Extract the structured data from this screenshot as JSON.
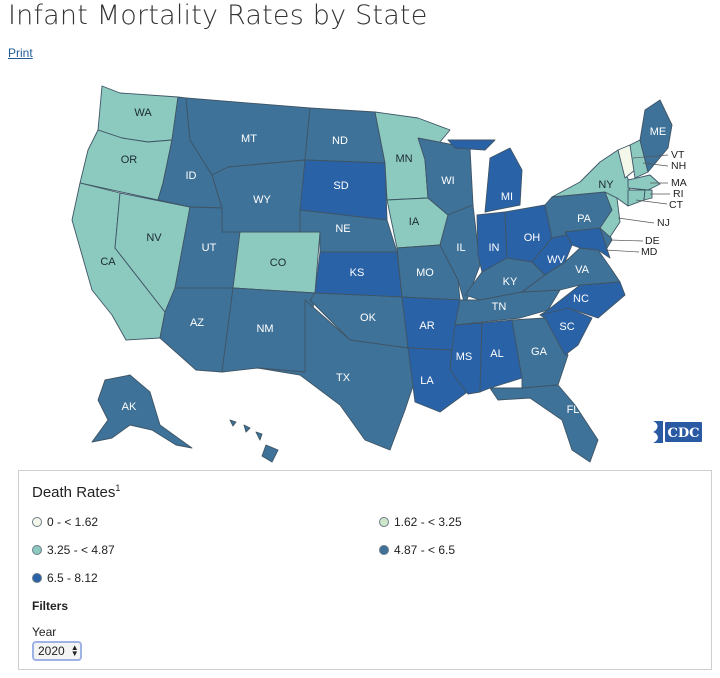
{
  "page": {
    "title": "Infant Mortality Rates by State",
    "print_label": "Print"
  },
  "colors": {
    "bin1": "#f3f8ea",
    "bin2": "#cfe7c9",
    "bin3": "#8cc9bf",
    "bin4": "#3e7299",
    "bin5": "#2a62a8",
    "label_dark": "#1c2b33",
    "label_light": "#ffffff"
  },
  "map": {
    "states": [
      {
        "abbr": "WA",
        "bin": 3
      },
      {
        "abbr": "OR",
        "bin": 3
      },
      {
        "abbr": "CA",
        "bin": 3
      },
      {
        "abbr": "NV",
        "bin": 3
      },
      {
        "abbr": "ID",
        "bin": 4
      },
      {
        "abbr": "MT",
        "bin": 4
      },
      {
        "abbr": "WY",
        "bin": 4
      },
      {
        "abbr": "UT",
        "bin": 4
      },
      {
        "abbr": "AZ",
        "bin": 4
      },
      {
        "abbr": "CO",
        "bin": 3
      },
      {
        "abbr": "NM",
        "bin": 4
      },
      {
        "abbr": "ND",
        "bin": 4
      },
      {
        "abbr": "SD",
        "bin": 5
      },
      {
        "abbr": "NE",
        "bin": 4
      },
      {
        "abbr": "KS",
        "bin": 5
      },
      {
        "abbr": "OK",
        "bin": 4
      },
      {
        "abbr": "TX",
        "bin": 4
      },
      {
        "abbr": "MN",
        "bin": 3
      },
      {
        "abbr": "IA",
        "bin": 3
      },
      {
        "abbr": "MO",
        "bin": 4
      },
      {
        "abbr": "AR",
        "bin": 5
      },
      {
        "abbr": "LA",
        "bin": 5
      },
      {
        "abbr": "WI",
        "bin": 4
      },
      {
        "abbr": "IL",
        "bin": 4
      },
      {
        "abbr": "MI",
        "bin": 5
      },
      {
        "abbr": "IN",
        "bin": 5
      },
      {
        "abbr": "OH",
        "bin": 5
      },
      {
        "abbr": "KY",
        "bin": 4
      },
      {
        "abbr": "TN",
        "bin": 4
      },
      {
        "abbr": "MS",
        "bin": 5
      },
      {
        "abbr": "AL",
        "bin": 5
      },
      {
        "abbr": "GA",
        "bin": 4
      },
      {
        "abbr": "FL",
        "bin": 4
      },
      {
        "abbr": "SC",
        "bin": 5
      },
      {
        "abbr": "NC",
        "bin": 5
      },
      {
        "abbr": "VA",
        "bin": 4
      },
      {
        "abbr": "WV",
        "bin": 5
      },
      {
        "abbr": "PA",
        "bin": 4
      },
      {
        "abbr": "NY",
        "bin": 3
      },
      {
        "abbr": "VT",
        "bin": 1
      },
      {
        "abbr": "NH",
        "bin": 3
      },
      {
        "abbr": "ME",
        "bin": 4
      },
      {
        "abbr": "MA",
        "bin": 3
      },
      {
        "abbr": "RI",
        "bin": 3
      },
      {
        "abbr": "CT",
        "bin": 3
      },
      {
        "abbr": "NJ",
        "bin": 3
      },
      {
        "abbr": "DE",
        "bin": 4
      },
      {
        "abbr": "MD",
        "bin": 5
      },
      {
        "abbr": "AK",
        "bin": 4
      },
      {
        "abbr": "HI",
        "bin": 4
      }
    ],
    "logo": "CDC"
  },
  "legend": {
    "title": "Death Rates",
    "footnote": "1",
    "items": [
      {
        "label": "0 - < 1.62",
        "color_key": "bin1"
      },
      {
        "label": "1.62 - < 3.25",
        "color_key": "bin2"
      },
      {
        "label": "3.25 - < 4.87",
        "color_key": "bin3"
      },
      {
        "label": "4.87 - < 6.5",
        "color_key": "bin4"
      },
      {
        "label": "6.5 - 8.12",
        "color_key": "bin5"
      }
    ]
  },
  "filters": {
    "heading": "Filters",
    "year_label": "Year",
    "year_value": "2020"
  }
}
